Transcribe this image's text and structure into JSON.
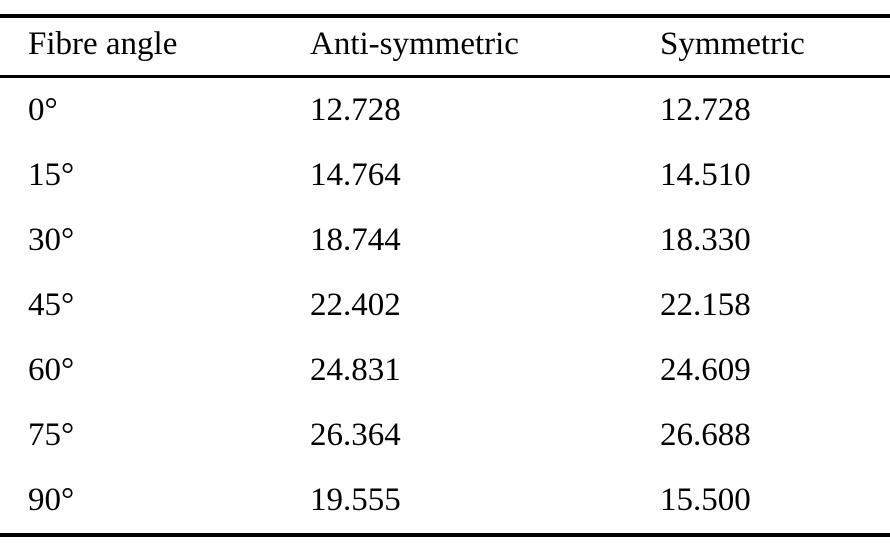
{
  "table": {
    "headers": [
      "Fibre angle",
      "Anti-symmetric",
      "Symmetric"
    ],
    "rows": [
      [
        "0°",
        "12.728",
        "12.728"
      ],
      [
        "15°",
        "14.764",
        "14.510"
      ],
      [
        "30°",
        "18.744",
        "18.330"
      ],
      [
        "45°",
        "22.402",
        "22.158"
      ],
      [
        "60°",
        "24.831",
        "24.609"
      ],
      [
        "75°",
        "26.364",
        "26.688"
      ],
      [
        "90°",
        "19.555",
        "15.500"
      ]
    ]
  },
  "chart_data": {
    "type": "table",
    "title": "",
    "columns": [
      "Fibre angle",
      "Anti-symmetric",
      "Symmetric"
    ],
    "categories": [
      "0",
      "15",
      "30",
      "45",
      "60",
      "75",
      "90"
    ],
    "series": [
      {
        "name": "Anti-symmetric",
        "values": [
          12.728,
          14.764,
          18.744,
          22.402,
          24.831,
          26.364,
          19.555
        ]
      },
      {
        "name": "Symmetric",
        "values": [
          12.728,
          14.51,
          18.33,
          22.158,
          24.609,
          26.688,
          15.5
        ]
      }
    ]
  }
}
